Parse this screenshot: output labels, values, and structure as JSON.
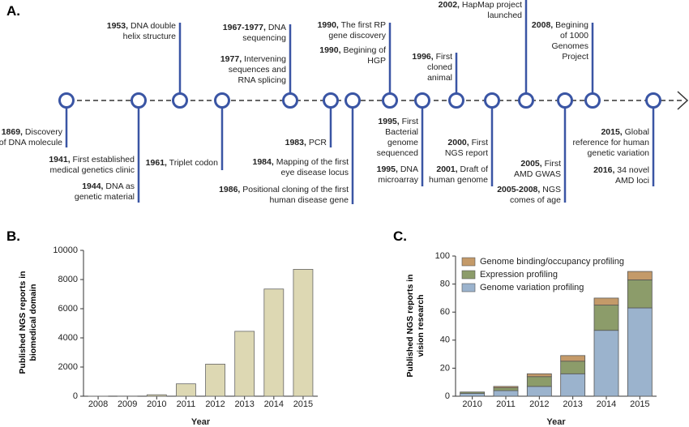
{
  "panel_labels": [
    "A.",
    "B.",
    "C."
  ],
  "timeline": {
    "events": [
      {
        "year": "1869,",
        "text": "Discovery of DNA molecule"
      },
      {
        "year": "1941,",
        "text": "First established medical genetics clinic"
      },
      {
        "year": "1944,",
        "text": "DNA as genetic material"
      },
      {
        "year": "1953,",
        "text": "DNA double helix structure"
      },
      {
        "year": "1961,",
        "text": "Triplet codon"
      },
      {
        "year": "1967-1977,",
        "text": "DNA sequencing"
      },
      {
        "year": "1977,",
        "text": "Intervening sequences and RNA splicing"
      },
      {
        "year": "1983,",
        "text": "PCR"
      },
      {
        "year": "1984,",
        "text": "Mapping of the first eye disease locus"
      },
      {
        "year": "1986,",
        "text": "Positional cloning of the first human disease gene"
      },
      {
        "year": "1990,",
        "text": "The first RP gene discovery"
      },
      {
        "year": "1990,",
        "text": "Begining of HGP"
      },
      {
        "year": "1995,",
        "text": "First Bacterial genome sequenced"
      },
      {
        "year": "1995,",
        "text": "DNA microarray"
      },
      {
        "year": "1996,",
        "text": "First cloned animal"
      },
      {
        "year": "2000,",
        "text": "First NGS report"
      },
      {
        "year": "2001,",
        "text": "Draft of human genome"
      },
      {
        "year": "2002,",
        "text": "HapMap project launched"
      },
      {
        "year": "2005,",
        "text": "First AMD GWAS"
      },
      {
        "year": "2005-2008,",
        "text": "NGS comes of age"
      },
      {
        "year": "2008,",
        "text": "Begining of 1000 Genomes Project"
      },
      {
        "year": "2015,",
        "text": "Global reference for human genetic variation"
      },
      {
        "year": "2016,",
        "text": "34 novel AMD loci"
      }
    ]
  },
  "chart_data": [
    {
      "type": "bar",
      "x_label": "Year",
      "y_label": "Published NGS reports in biomedical domain",
      "categories": [
        "2008",
        "2009",
        "2010",
        "2011",
        "2012",
        "2013",
        "2014",
        "2015"
      ],
      "values": [
        5,
        10,
        100,
        850,
        2200,
        4450,
        7350,
        8700
      ],
      "color": "#ddd8b3",
      "ylim": [
        0,
        10000
      ],
      "yticks": [
        0,
        2000,
        4000,
        6000,
        8000,
        10000
      ]
    },
    {
      "type": "stacked_bar",
      "x_label": "Year",
      "y_label": "Published NGS reports in vision research",
      "categories": [
        "2010",
        "2011",
        "2012",
        "2013",
        "2014",
        "2015"
      ],
      "series": [
        {
          "name": "Genome variation profiling",
          "color": "#9bb3cd",
          "values": [
            2,
            4,
            7,
            16,
            47,
            63
          ]
        },
        {
          "name": "Expression profiling",
          "color": "#8c9c6a",
          "values": [
            1,
            2,
            7,
            9,
            18,
            20
          ]
        },
        {
          "name": "Genome binding/occupancy profiling",
          "color": "#c49a69",
          "values": [
            0,
            1,
            2,
            4,
            5,
            6
          ]
        }
      ],
      "ylim": [
        0,
        100
      ],
      "yticks": [
        0,
        20,
        40,
        60,
        80,
        100
      ],
      "legend": "top-left"
    }
  ]
}
